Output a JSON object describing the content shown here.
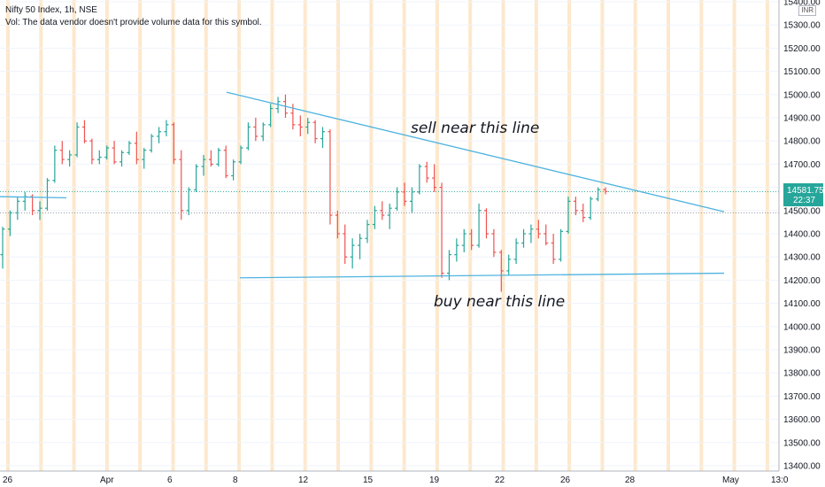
{
  "header": {
    "title": "Nifty 50 Index, 1h, NSE",
    "volume_note": "Vol: The data vendor doesn't provide volume data for this symbol."
  },
  "currency_label": "INR",
  "colors": {
    "up": "#26a69a",
    "down": "#ef5350",
    "trend": "#4fb3e0",
    "session": "#fde8cc",
    "grid": "#f0f3fa",
    "price_tag": "#26a69a"
  },
  "chart_data": {
    "type": "ohlc-bar",
    "title": "Nifty 50 Index, 1h, NSE",
    "ylim": [
      13390,
      15460
    ],
    "y_ticks": [
      "15400.00",
      "15300.00",
      "15200.00",
      "15100.00",
      "15000.00",
      "14900.00",
      "14800.00",
      "14700.00",
      "14600.00",
      "14500.00",
      "14400.00",
      "14300.00",
      "14200.00",
      "14100.00",
      "14000.00",
      "13900.00",
      "13800.00",
      "13700.00",
      "13600.00",
      "13500.00",
      "13400.00"
    ],
    "x_ticks": [
      "26",
      "Apr",
      "6",
      "8",
      "12",
      "15",
      "19",
      "22",
      "26",
      "28",
      "May",
      "13:0"
    ],
    "last_price": "14581.75",
    "countdown": "22:37",
    "dotted_level": "14490.00",
    "annotations": {
      "sell": "sell near this line",
      "buy": "buy near this line"
    },
    "ohlc": [
      [
        14310,
        14430,
        14250,
        14420
      ],
      [
        14420,
        14500,
        14390,
        14490
      ],
      [
        14490,
        14560,
        14460,
        14540
      ],
      [
        14540,
        14580,
        14500,
        14560
      ],
      [
        14560,
        14570,
        14480,
        14500
      ],
      [
        14500,
        14540,
        14460,
        14510
      ],
      [
        14510,
        14640,
        14500,
        14630
      ],
      [
        14630,
        14780,
        14620,
        14760
      ],
      [
        14760,
        14800,
        14700,
        14720
      ],
      [
        14720,
        14760,
        14690,
        14740
      ],
      [
        14740,
        14880,
        14730,
        14860
      ],
      [
        14860,
        14890,
        14790,
        14800
      ],
      [
        14800,
        14810,
        14700,
        14720
      ],
      [
        14720,
        14760,
        14700,
        14730
      ],
      [
        14730,
        14780,
        14720,
        14770
      ],
      [
        14770,
        14800,
        14700,
        14710
      ],
      [
        14710,
        14760,
        14690,
        14750
      ],
      [
        14750,
        14800,
        14740,
        14790
      ],
      [
        14790,
        14840,
        14700,
        14720
      ],
      [
        14720,
        14770,
        14680,
        14760
      ],
      [
        14760,
        14830,
        14750,
        14820
      ],
      [
        14820,
        14860,
        14790,
        14840
      ],
      [
        14840,
        14890,
        14820,
        14870
      ],
      [
        14870,
        14880,
        14700,
        14720
      ],
      [
        14720,
        14760,
        14460,
        14500
      ],
      [
        14500,
        14600,
        14480,
        14590
      ],
      [
        14590,
        14700,
        14580,
        14690
      ],
      [
        14690,
        14740,
        14650,
        14720
      ],
      [
        14720,
        14760,
        14690,
        14700
      ],
      [
        14700,
        14770,
        14690,
        14760
      ],
      [
        14760,
        14780,
        14640,
        14650
      ],
      [
        14650,
        14720,
        14630,
        14710
      ],
      [
        14710,
        14780,
        14700,
        14770
      ],
      [
        14770,
        14880,
        14760,
        14860
      ],
      [
        14860,
        14900,
        14800,
        14820
      ],
      [
        14820,
        14880,
        14800,
        14870
      ],
      [
        14870,
        14960,
        14860,
        14940
      ],
      [
        14940,
        14990,
        14920,
        14970
      ],
      [
        14970,
        15000,
        14900,
        14920
      ],
      [
        14920,
        14960,
        14850,
        14870
      ],
      [
        14870,
        14910,
        14820,
        14860
      ],
      [
        14860,
        14900,
        14830,
        14880
      ],
      [
        14880,
        14890,
        14790,
        14810
      ],
      [
        14810,
        14860,
        14770,
        14840
      ],
      [
        14840,
        14850,
        14440,
        14480
      ],
      [
        14480,
        14500,
        14380,
        14400
      ],
      [
        14400,
        14440,
        14270,
        14300
      ],
      [
        14300,
        14380,
        14250,
        14350
      ],
      [
        14350,
        14400,
        14290,
        14380
      ],
      [
        14380,
        14460,
        14360,
        14440
      ],
      [
        14440,
        14520,
        14420,
        14500
      ],
      [
        14500,
        14540,
        14460,
        14480
      ],
      [
        14480,
        14530,
        14420,
        14510
      ],
      [
        14510,
        14600,
        14500,
        14580
      ],
      [
        14580,
        14620,
        14520,
        14540
      ],
      [
        14540,
        14600,
        14490,
        14580
      ],
      [
        14580,
        14700,
        14570,
        14690
      ],
      [
        14690,
        14710,
        14620,
        14640
      ],
      [
        14640,
        14700,
        14580,
        14600
      ],
      [
        14600,
        14620,
        14210,
        14230
      ],
      [
        14230,
        14330,
        14200,
        14310
      ],
      [
        14310,
        14380,
        14280,
        14350
      ],
      [
        14350,
        14420,
        14320,
        14400
      ],
      [
        14400,
        14420,
        14330,
        14350
      ],
      [
        14350,
        14530,
        14340,
        14500
      ],
      [
        14500,
        14510,
        14380,
        14400
      ],
      [
        14400,
        14420,
        14300,
        14320
      ],
      [
        14320,
        14330,
        14150,
        14240
      ],
      [
        14240,
        14310,
        14220,
        14290
      ],
      [
        14290,
        14380,
        14270,
        14360
      ],
      [
        14360,
        14420,
        14340,
        14400
      ],
      [
        14400,
        14440,
        14360,
        14420
      ],
      [
        14420,
        14460,
        14380,
        14400
      ],
      [
        14400,
        14440,
        14350,
        14360
      ],
      [
        14360,
        14400,
        14270,
        14290
      ],
      [
        14290,
        14420,
        14280,
        14410
      ],
      [
        14410,
        14560,
        14400,
        14540
      ],
      [
        14540,
        14560,
        14480,
        14500
      ],
      [
        14500,
        14530,
        14450,
        14470
      ],
      [
        14470,
        14560,
        14460,
        14550
      ],
      [
        14550,
        14600,
        14540,
        14590
      ],
      [
        14590,
        14600,
        14570,
        14582
      ]
    ],
    "trend_lines": [
      {
        "from": [
          13,
          15010
        ],
        "to": [
          41.5,
          14495
        ]
      },
      {
        "from": [
          13.7,
          14210
        ],
        "to": [
          41.6,
          14230
        ]
      },
      {
        "from": [
          0,
          14560
        ],
        "to": [
          3.8,
          14555
        ]
      }
    ]
  }
}
